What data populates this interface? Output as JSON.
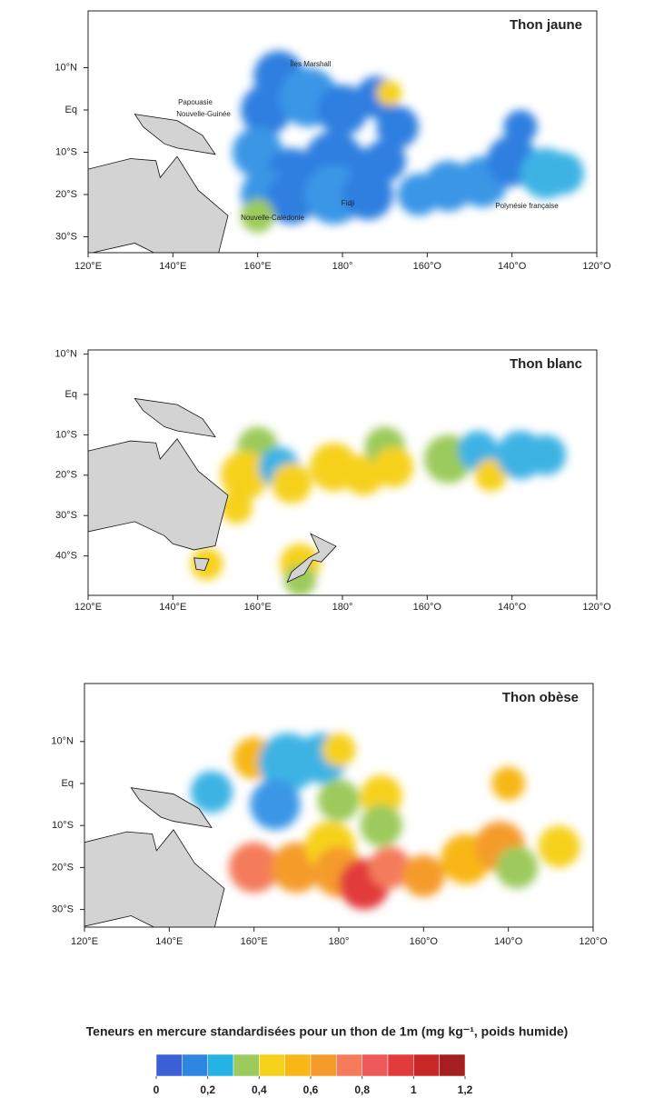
{
  "panels": [
    {
      "title": "Thon jaune",
      "lat_labels": [
        "10°N",
        "Eq",
        "10°S",
        "20°S",
        "30°S"
      ],
      "lon_labels": [
        "120°E",
        "140°E",
        "160°E",
        "180°",
        "160°O",
        "140°O",
        "120°O"
      ],
      "place_labels": [
        "Îles Marshall",
        "Papouasie",
        "Nouvelle-Guinée",
        "Fidji",
        "Nouvelle-Calédonie",
        "Polynésie française"
      ]
    },
    {
      "title": "Thon blanc",
      "lat_labels": [
        "10°N",
        "Eq",
        "10°S",
        "20°S",
        "30°S",
        "40°S"
      ],
      "lon_labels": [
        "120°E",
        "140°E",
        "160°E",
        "180°",
        "160°O",
        "140°O",
        "120°O"
      ]
    },
    {
      "title": "Thon obèse",
      "lat_labels": [
        "10°N",
        "Eq",
        "10°S",
        "20°S",
        "30°S"
      ],
      "lon_labels": [
        "120°E",
        "140°E",
        "160°E",
        "180°",
        "160°O",
        "140°O",
        "120°O"
      ]
    }
  ],
  "legend": {
    "title": "Teneurs en mercure standardisées pour un thon de 1m (mg kg⁻¹, poids humide)",
    "range": [
      0,
      1.2
    ],
    "colors": [
      "#3b5fd4",
      "#2f86e0",
      "#27b2e4",
      "#9cca5c",
      "#f6d11c",
      "#f8b716",
      "#f59b2c",
      "#f47b5c",
      "#ee5a5a",
      "#e23b3b",
      "#c92828",
      "#a51f1f"
    ],
    "ticks": [
      0,
      {
        "value": 0.2,
        "label": "0,2"
      },
      {
        "value": 0.4,
        "label": "0,4"
      },
      {
        "value": 0.6,
        "label": "0,6"
      },
      {
        "value": 0.8,
        "label": "0,8"
      },
      1,
      {
        "value": 1.2,
        "label": "1,2"
      }
    ]
  }
}
